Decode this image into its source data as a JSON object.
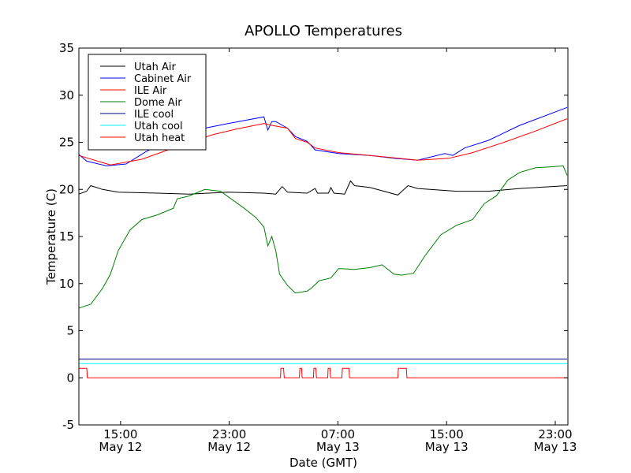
{
  "chart_data": {
    "type": "line",
    "title": "APOLLO Temperatures",
    "xlabel": "Date (GMT)",
    "ylabel": "Temperature (C)",
    "x_units": "hours since May 12 00:00 GMT",
    "xlim": [
      11.93,
      47.93
    ],
    "ylim": [
      -5,
      35
    ],
    "yticks": [
      -5,
      0,
      5,
      10,
      15,
      20,
      25,
      30,
      35
    ],
    "yticklabels": [
      "-5",
      "0",
      "5",
      "10",
      "15",
      "20",
      "25",
      "30",
      "35"
    ],
    "xticks": [
      {
        "value": 15,
        "time": "15:00",
        "date": "May 12"
      },
      {
        "value": 23,
        "time": "23:00",
        "date": "May 12"
      },
      {
        "value": 31,
        "time": "07:00",
        "date": "May 13"
      },
      {
        "value": 39,
        "time": "15:00",
        "date": "May 13"
      },
      {
        "value": 47,
        "time": "23:00",
        "date": "May 13"
      }
    ],
    "grid": false,
    "legend_position": "top-left",
    "series": [
      {
        "name": "Utah Air",
        "color": "#000000",
        "points": [
          [
            11.93,
            19.5
          ],
          [
            12.5,
            19.8
          ],
          [
            12.8,
            20.4
          ],
          [
            13.67,
            20.0
          ],
          [
            14.83,
            19.7
          ],
          [
            17.72,
            19.6
          ],
          [
            20.04,
            19.5
          ],
          [
            22.94,
            19.7
          ],
          [
            25.55,
            19.6
          ],
          [
            26.42,
            19.5
          ],
          [
            26.9,
            20.3
          ],
          [
            27.29,
            19.7
          ],
          [
            28.74,
            19.6
          ],
          [
            29.32,
            20.1
          ],
          [
            29.5,
            19.6
          ],
          [
            30.3,
            19.6
          ],
          [
            30.48,
            20.2
          ],
          [
            30.7,
            19.6
          ],
          [
            31.5,
            19.5
          ],
          [
            31.93,
            20.9
          ],
          [
            32.22,
            20.4
          ],
          [
            33.38,
            20.2
          ],
          [
            35.41,
            19.4
          ],
          [
            36.16,
            20.4
          ],
          [
            36.86,
            20.1
          ],
          [
            39.75,
            19.8
          ],
          [
            42.07,
            19.8
          ],
          [
            44.39,
            20.1
          ],
          [
            47.87,
            20.4
          ]
        ]
      },
      {
        "name": "Cabinet Air",
        "color": "#0000ff",
        "points": [
          [
            11.93,
            23.7
          ],
          [
            12.51,
            23.0
          ],
          [
            13.96,
            22.5
          ],
          [
            15.41,
            22.7
          ],
          [
            16.86,
            24.0
          ],
          [
            18.59,
            25.2
          ],
          [
            21.2,
            26.5
          ],
          [
            22.94,
            27.0
          ],
          [
            25.55,
            27.7
          ],
          [
            25.84,
            26.3
          ],
          [
            26.13,
            27.2
          ],
          [
            26.42,
            27.2
          ],
          [
            27.29,
            26.5
          ],
          [
            27.87,
            25.6
          ],
          [
            28.74,
            25.1
          ],
          [
            29.32,
            24.2
          ],
          [
            31.06,
            23.8
          ],
          [
            33.38,
            23.6
          ],
          [
            35.12,
            23.3
          ],
          [
            36.86,
            23.1
          ],
          [
            38.88,
            23.8
          ],
          [
            39.46,
            23.6
          ],
          [
            40.33,
            24.4
          ],
          [
            42.07,
            25.2
          ],
          [
            44.39,
            26.8
          ],
          [
            47.87,
            28.7
          ]
        ]
      },
      {
        "name": "ILE Air",
        "color": "#ff0000",
        "points": [
          [
            11.93,
            23.6
          ],
          [
            14.25,
            22.6
          ],
          [
            16.57,
            23.2
          ],
          [
            19.46,
            24.7
          ],
          [
            21.78,
            25.8
          ],
          [
            23.52,
            26.4
          ],
          [
            25.55,
            27.0
          ],
          [
            26.13,
            26.8
          ],
          [
            27.29,
            26.5
          ],
          [
            27.87,
            25.4
          ],
          [
            28.74,
            25.0
          ],
          [
            29.32,
            24.4
          ],
          [
            31.06,
            23.9
          ],
          [
            33.38,
            23.6
          ],
          [
            36.86,
            23.1
          ],
          [
            39.17,
            23.3
          ],
          [
            40.91,
            23.9
          ],
          [
            43.23,
            25.0
          ],
          [
            45.55,
            26.2
          ],
          [
            47.87,
            27.5
          ]
        ]
      },
      {
        "name": "Dome Air",
        "color": "#008000",
        "points": [
          [
            11.93,
            7.4
          ],
          [
            12.8,
            7.8
          ],
          [
            13.67,
            9.5
          ],
          [
            14.25,
            11.0
          ],
          [
            14.83,
            13.5
          ],
          [
            15.7,
            15.7
          ],
          [
            16.57,
            16.8
          ],
          [
            17.72,
            17.3
          ],
          [
            18.88,
            18.0
          ],
          [
            19.17,
            19.0
          ],
          [
            20.04,
            19.3
          ],
          [
            21.2,
            20.0
          ],
          [
            22.36,
            19.8
          ],
          [
            22.94,
            19.2
          ],
          [
            24.1,
            18.0
          ],
          [
            24.97,
            17.0
          ],
          [
            25.55,
            16.0
          ],
          [
            25.84,
            14.0
          ],
          [
            26.13,
            15.0
          ],
          [
            26.42,
            13.5
          ],
          [
            26.71,
            11.0
          ],
          [
            27.29,
            9.8
          ],
          [
            27.87,
            9.0
          ],
          [
            28.74,
            9.2
          ],
          [
            29.03,
            9.5
          ],
          [
            29.61,
            10.3
          ],
          [
            30.48,
            10.6
          ],
          [
            31.06,
            11.6
          ],
          [
            32.22,
            11.5
          ],
          [
            33.38,
            11.7
          ],
          [
            34.25,
            12.0
          ],
          [
            35.12,
            11.0
          ],
          [
            35.7,
            10.9
          ],
          [
            36.57,
            11.1
          ],
          [
            37.43,
            13.0
          ],
          [
            38.59,
            15.2
          ],
          [
            39.75,
            16.2
          ],
          [
            40.91,
            16.8
          ],
          [
            41.78,
            18.5
          ],
          [
            42.65,
            19.3
          ],
          [
            43.52,
            21.0
          ],
          [
            44.39,
            21.8
          ],
          [
            45.55,
            22.3
          ],
          [
            46.71,
            22.4
          ],
          [
            47.58,
            22.5
          ],
          [
            47.87,
            21.5
          ]
        ]
      },
      {
        "name": "ILE cool",
        "color": "#000080",
        "points": [
          [
            11.93,
            2.0
          ],
          [
            47.87,
            2.0
          ]
        ]
      },
      {
        "name": "Utah cool",
        "color": "#00ffff",
        "points": [
          [
            11.93,
            1.5
          ],
          [
            47.87,
            1.5
          ]
        ]
      },
      {
        "name": "Utah heat",
        "color": "#ff0000",
        "points": [
          [
            11.93,
            1
          ],
          [
            12.51,
            1
          ],
          [
            12.55,
            0
          ],
          [
            26.77,
            0
          ],
          [
            26.8,
            1
          ],
          [
            27.0,
            1
          ],
          [
            27.05,
            0
          ],
          [
            28.16,
            0
          ],
          [
            28.2,
            1
          ],
          [
            28.33,
            1
          ],
          [
            28.37,
            0
          ],
          [
            29.2,
            0
          ],
          [
            29.23,
            1
          ],
          [
            29.38,
            1
          ],
          [
            29.42,
            0
          ],
          [
            30.25,
            0
          ],
          [
            30.28,
            1
          ],
          [
            30.42,
            1
          ],
          [
            30.46,
            0
          ],
          [
            31.29,
            0
          ],
          [
            31.33,
            1
          ],
          [
            31.81,
            1
          ],
          [
            31.85,
            0
          ],
          [
            35.41,
            0
          ],
          [
            35.45,
            1
          ],
          [
            36.04,
            1
          ],
          [
            36.08,
            0
          ],
          [
            47.87,
            0
          ]
        ]
      }
    ]
  }
}
